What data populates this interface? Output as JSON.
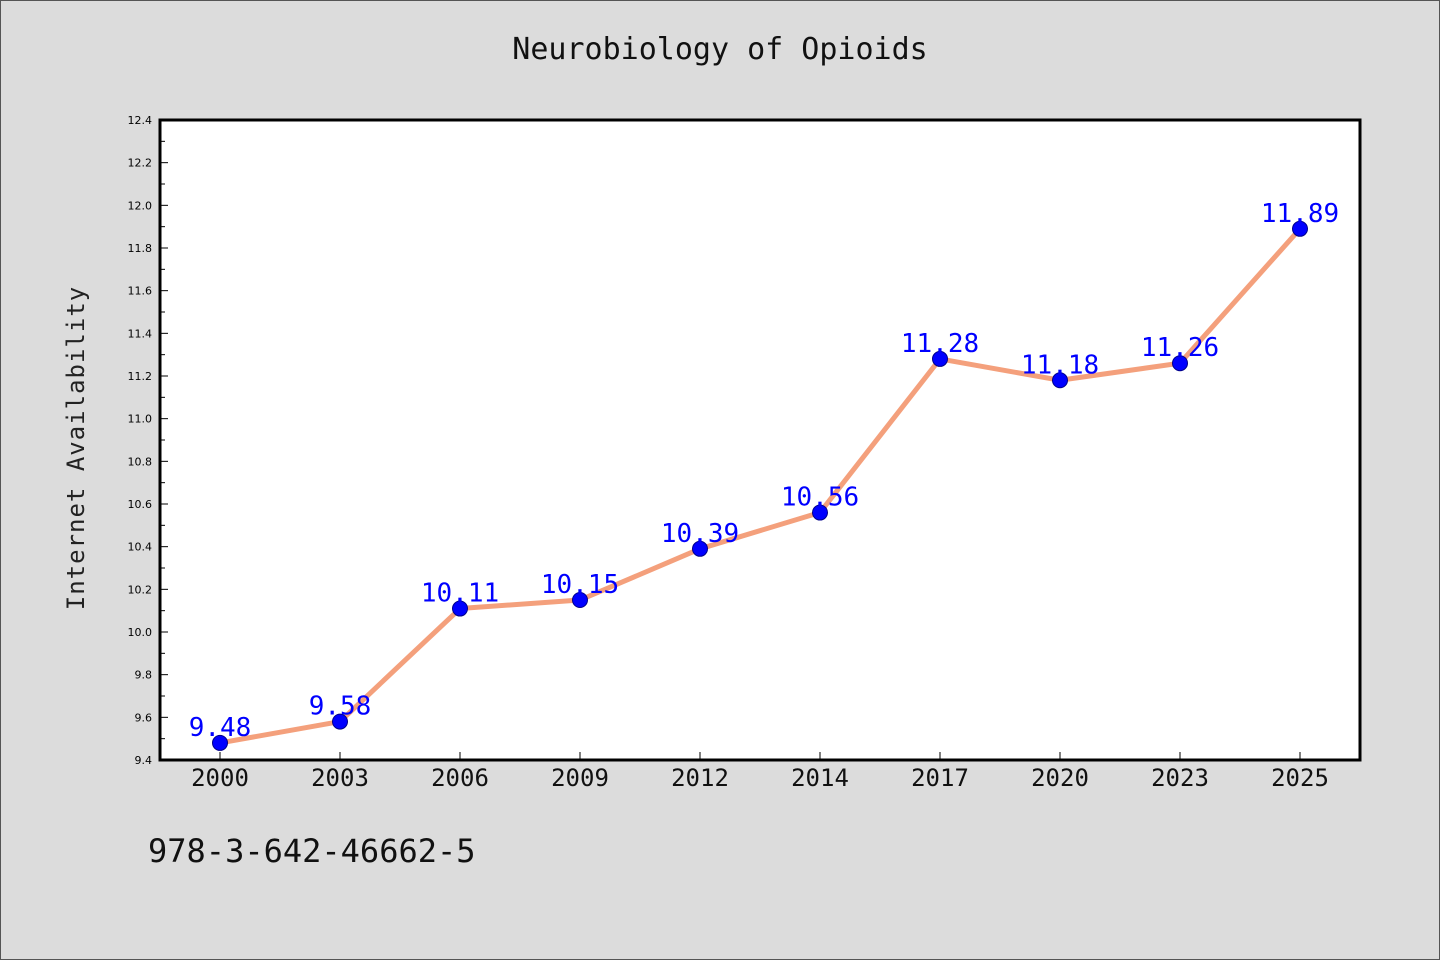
{
  "colors": {
    "background": "#dcdcdc",
    "plot_background": "#ffffff",
    "line": "#f4a07c",
    "marker": "#0000ff",
    "data_label": "#0000ff"
  },
  "footer": {
    "isbn": "978-3-642-46662-5"
  },
  "chart_data": {
    "type": "line",
    "title": "Neurobiology of Opioids",
    "xlabel": "",
    "ylabel": "Internet Availability",
    "categories": [
      "2000",
      "2003",
      "2006",
      "2009",
      "2012",
      "2014",
      "2017",
      "2020",
      "2023",
      "2025"
    ],
    "series": [
      {
        "values": [
          9.48,
          9.58,
          10.11,
          10.15,
          10.39,
          10.56,
          11.28,
          11.18,
          11.26,
          11.89
        ],
        "data_labels": [
          "9.48",
          "9.58",
          "10.11",
          "10.15",
          "10.39",
          "10.56",
          "11.28",
          "11.18",
          "11.26",
          "11.89"
        ]
      }
    ],
    "ylim": [
      9.4,
      12.4
    ],
    "yticks": [
      "9.4",
      "9.6",
      "9.8",
      "10.0",
      "10.2",
      "10.4",
      "10.6",
      "10.8",
      "11.0",
      "11.2",
      "11.4",
      "11.6",
      "11.8",
      "12.0",
      "12.2",
      "12.4"
    ],
    "grid": false,
    "legend": "none"
  }
}
